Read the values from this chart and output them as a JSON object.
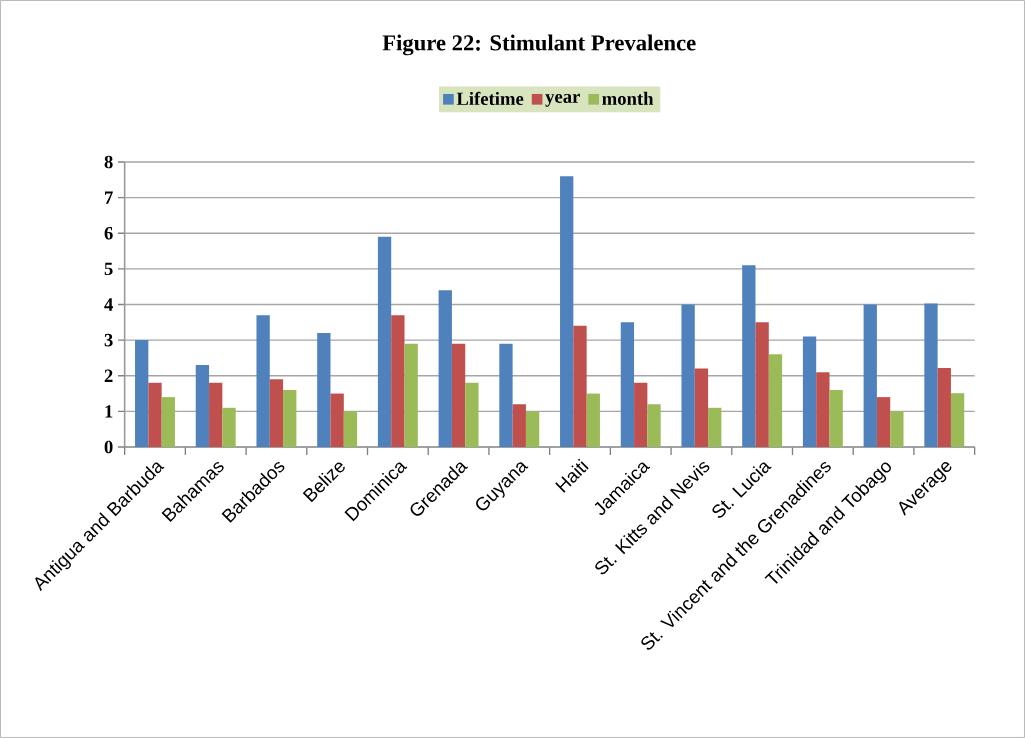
{
  "chart_data": {
    "type": "bar",
    "title": "Figure 22: Stimulant Prevalence",
    "categories": [
      "Antigua and Barbuda",
      "Bahamas",
      "Barbados",
      "Belize",
      "Dominica",
      "Grenada",
      "Guyana",
      "Haiti",
      "Jamaica",
      "St. Kitts and Nevis",
      "St. Lucia",
      "St. Vincent and the Grenadines",
      "Trinidad and Tobago",
      "Average"
    ],
    "series": [
      {
        "name": "Lifetime",
        "color": "#4f81bd",
        "values": [
          3.0,
          2.3,
          3.7,
          3.2,
          5.9,
          4.4,
          2.9,
          7.6,
          3.5,
          4.0,
          5.1,
          3.1,
          4.0,
          4.03
        ]
      },
      {
        "name": "year",
        "color": "#c0504d",
        "values": [
          1.8,
          1.8,
          1.9,
          1.5,
          3.7,
          2.9,
          1.2,
          3.4,
          1.8,
          2.2,
          3.5,
          2.1,
          1.4,
          2.22
        ]
      },
      {
        "name": "month",
        "color": "#9bbb59",
        "values": [
          1.4,
          1.1,
          1.6,
          1.0,
          2.9,
          1.8,
          1.0,
          1.5,
          1.2,
          1.1,
          2.6,
          1.6,
          1.0,
          1.51
        ]
      }
    ],
    "ylim": [
      0,
      8
    ],
    "yticks": [
      0,
      1,
      2,
      3,
      4,
      5,
      6,
      7,
      8
    ],
    "grid": "y",
    "legend": "top"
  }
}
